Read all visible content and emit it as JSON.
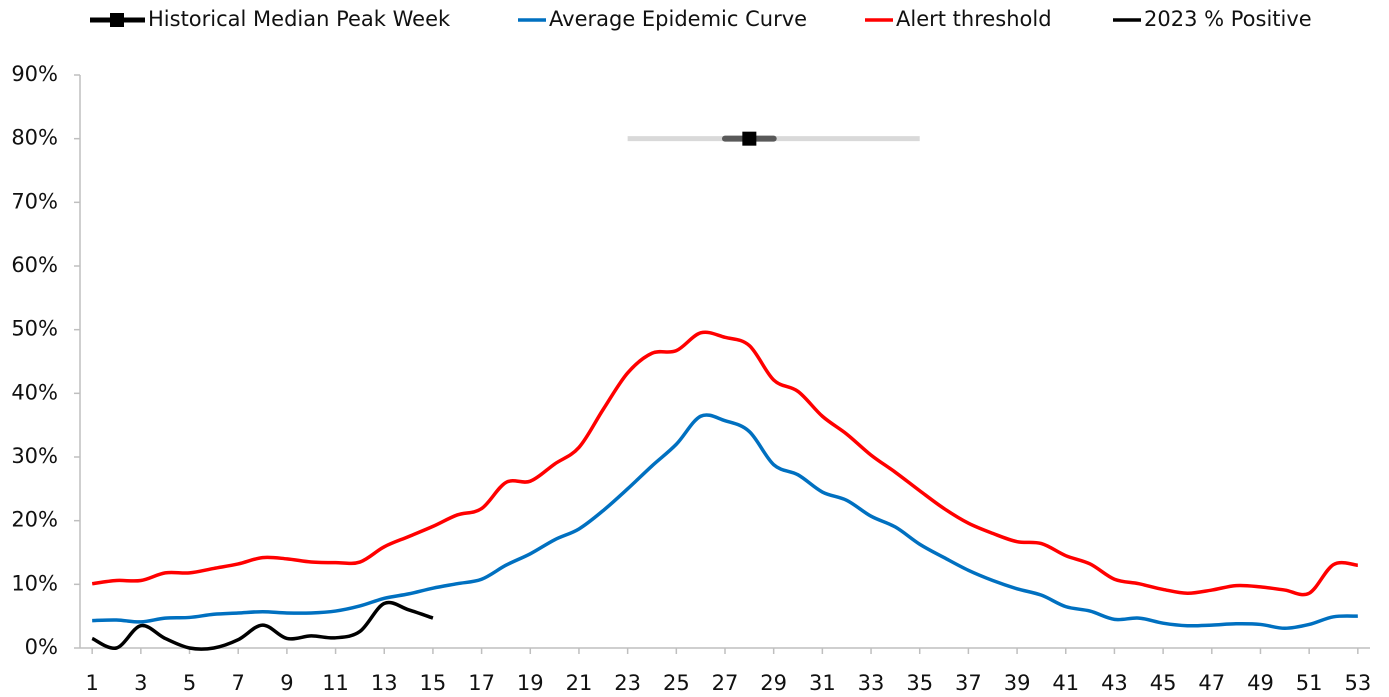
{
  "chart_data": {
    "type": "line",
    "x": [
      1,
      2,
      3,
      4,
      5,
      6,
      7,
      8,
      9,
      10,
      11,
      12,
      13,
      14,
      15,
      16,
      17,
      18,
      19,
      20,
      21,
      22,
      23,
      24,
      25,
      26,
      27,
      28,
      29,
      30,
      31,
      32,
      33,
      34,
      35,
      36,
      37,
      38,
      39,
      40,
      41,
      42,
      43,
      44,
      45,
      46,
      47,
      48,
      49,
      50,
      51,
      52,
      53
    ],
    "xlim": [
      0.5,
      53.5
    ],
    "xticks": [
      1,
      3,
      5,
      7,
      9,
      11,
      13,
      15,
      17,
      19,
      21,
      23,
      25,
      27,
      29,
      31,
      33,
      35,
      37,
      39,
      41,
      43,
      45,
      47,
      49,
      51,
      53
    ],
    "ylim": [
      0,
      90
    ],
    "yticks": [
      {
        "value": 0,
        "label": "0%"
      },
      {
        "value": 10,
        "label": "10%"
      },
      {
        "value": 20,
        "label": "20%"
      },
      {
        "value": 30,
        "label": "30%"
      },
      {
        "value": 40,
        "label": "40%"
      },
      {
        "value": 50,
        "label": "50%"
      },
      {
        "value": 60,
        "label": "60%"
      },
      {
        "value": 70,
        "label": "70%"
      },
      {
        "value": 80,
        "label": "80%"
      },
      {
        "value": 90,
        "label": "90%"
      }
    ],
    "grid": false,
    "legend": "top",
    "series": [
      {
        "name": "Historical Median Peak Week",
        "color": "#000000",
        "x": 28,
        "y": 80,
        "range_inner": [
          27,
          29
        ],
        "range_outer": [
          23,
          35
        ],
        "inner_color": "#595959",
        "outer_color": "#d9d9d9"
      },
      {
        "name": "Average Epidemic Curve",
        "color": "#0070c0",
        "values": [
          4.3,
          4.4,
          4.1,
          4.7,
          4.8,
          5.3,
          5.5,
          5.7,
          5.5,
          5.5,
          5.8,
          6.6,
          7.8,
          8.5,
          9.4,
          10.1,
          10.8,
          13,
          14.8,
          17,
          18.7,
          21.6,
          25,
          28.6,
          32,
          36.4,
          35.7,
          34,
          28.8,
          27.2,
          24.5,
          23.2,
          20.7,
          19,
          16.3,
          14.2,
          12.2,
          10.6,
          9.3,
          8.3,
          6.5,
          5.8,
          4.5,
          4.7,
          3.9,
          3.5,
          3.6,
          3.8,
          3.7,
          3.1,
          3.7,
          4.9,
          5.0
        ]
      },
      {
        "name": "Alert threshold",
        "color": "#ff0000",
        "values": [
          10.1,
          10.6,
          10.6,
          11.8,
          11.8,
          12.5,
          13.2,
          14.2,
          14,
          13.5,
          13.4,
          13.5,
          15.9,
          17.5,
          19.1,
          20.9,
          21.9,
          26,
          26.2,
          28.9,
          31.5,
          37.5,
          43.2,
          46.3,
          46.7,
          49.5,
          48.8,
          47.5,
          42.1,
          40.3,
          36.4,
          33.6,
          30.3,
          27.6,
          24.7,
          21.9,
          19.6,
          18,
          16.7,
          16.4,
          14.5,
          13.2,
          10.8,
          10.1,
          9.2,
          8.6,
          9.1,
          9.8,
          9.6,
          9.1,
          8.6,
          13.1,
          13.0
        ]
      },
      {
        "name": "2023 % Positive",
        "color": "#000000",
        "values": [
          1.5,
          0,
          3.5,
          1.5,
          0,
          0,
          1.3,
          3.6,
          1.5,
          1.9,
          1.6,
          2.6,
          7,
          6,
          4.7,
          null,
          null,
          null,
          null,
          null,
          null,
          null,
          null,
          null,
          null,
          null,
          null,
          null,
          null,
          null,
          null,
          null,
          null,
          null,
          null,
          null,
          null,
          null,
          null,
          null,
          null,
          null,
          null,
          null,
          null,
          null,
          null,
          null,
          null,
          null,
          null,
          null,
          null
        ]
      }
    ]
  }
}
